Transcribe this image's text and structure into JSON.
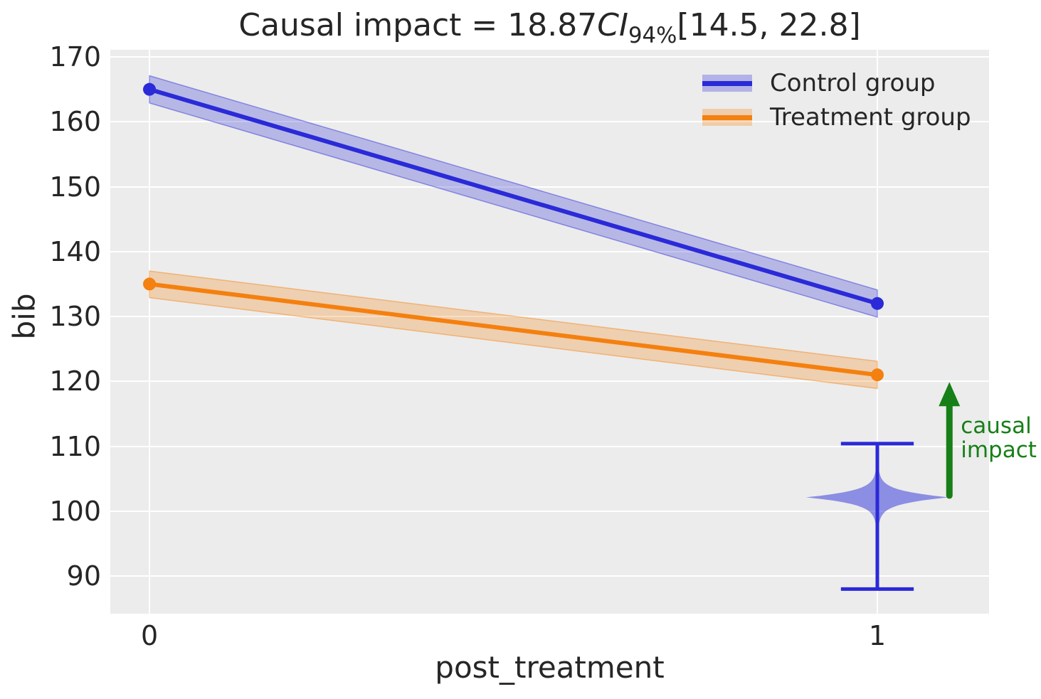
{
  "title": {
    "prefix": "Causal impact = 18.87",
    "ci_label": "CI",
    "ci_sub": "94%",
    "interval": "[14.5, 22.8]"
  },
  "axes": {
    "xlabel": "post_treatment",
    "ylabel": "bib"
  },
  "legend": {
    "items": [
      {
        "label": "Control group",
        "color": "#2a2ad8"
      },
      {
        "label": "Treatment group",
        "color": "#f4800f"
      }
    ]
  },
  "annotation": {
    "label": "causal impact",
    "line1": "causal",
    "line2": "impact"
  },
  "colors": {
    "control": "#2a2ad8",
    "treatment": "#f4800f",
    "violin_fill": "#2a2fd8",
    "arrow_green": "#177f17",
    "plot_bg": "#ececec",
    "grid": "#ffffff",
    "text": "#262626"
  },
  "chart_data": {
    "type": "line",
    "title": "Causal impact = 18.87 CI_94% [14.5, 22.8]",
    "xlabel": "post_treatment",
    "ylabel": "bib",
    "grid": true,
    "legend_position": "upper right",
    "x": [
      0,
      1
    ],
    "x_tick_labels": [
      "0",
      "1"
    ],
    "y_ticks": [
      90,
      100,
      110,
      120,
      130,
      140,
      150,
      160,
      170
    ],
    "xlim": [
      -0.0538,
      1.1535
    ],
    "ylim": [
      84.2,
      171.1
    ],
    "series": [
      {
        "name": "Control group",
        "x": [
          0,
          1
        ],
        "y": [
          165,
          132
        ],
        "ci_lower": [
          162.9,
          129.9
        ],
        "ci_upper": [
          167.1,
          134.1
        ]
      },
      {
        "name": "Treatment group",
        "x": [
          0,
          1
        ],
        "y": [
          135,
          121
        ],
        "ci_lower": [
          132.9,
          118.9
        ],
        "ci_upper": [
          137.0,
          123.1
        ]
      }
    ],
    "counterfactual_posterior": {
      "x": 1,
      "whisker_low": 88.0,
      "whisker_high": 110.4,
      "mode": 102.13,
      "max_halfwidth_x": 0.098,
      "cap_halfwidth_x": 0.05
    },
    "causal_impact": {
      "estimate": 18.87,
      "ci_level": "94%",
      "ci": [
        14.5,
        22.8
      ],
      "arrow_x": 1.099,
      "arrow_from": 102.4,
      "arrow_to": 119.9,
      "label": "causal impact"
    }
  }
}
